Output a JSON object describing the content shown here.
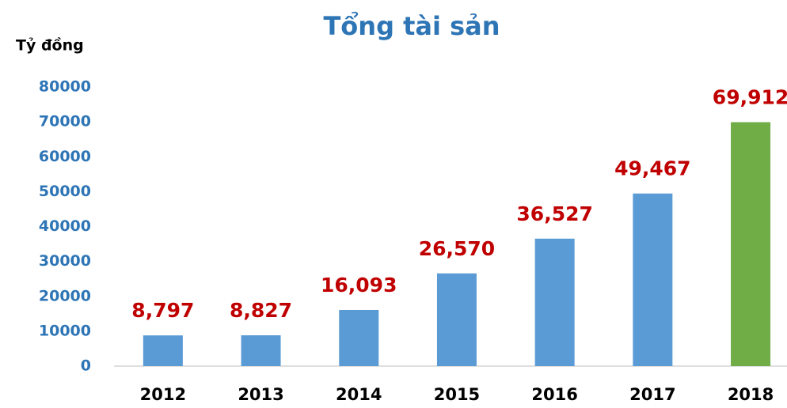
{
  "chart_data": {
    "type": "bar",
    "title": "Tổng tài sản",
    "y_axis_label": "Tỷ đồng",
    "categories": [
      "2012",
      "2013",
      "2014",
      "2015",
      "2016",
      "2017",
      "2018"
    ],
    "values": [
      8797,
      8827,
      16093,
      26570,
      36527,
      49467,
      69912
    ],
    "value_labels": [
      "8,797",
      "8,827",
      "16,093",
      "26,570",
      "36,527",
      "49,467",
      "69,912"
    ],
    "colors": [
      "#5b9bd5",
      "#5b9bd5",
      "#5b9bd5",
      "#5b9bd5",
      "#5b9bd5",
      "#5b9bd5",
      "#70ad47"
    ],
    "ylim": [
      0,
      80000
    ],
    "yticks": [
      0,
      10000,
      20000,
      30000,
      40000,
      50000,
      60000,
      70000,
      80000
    ],
    "grid": false
  }
}
